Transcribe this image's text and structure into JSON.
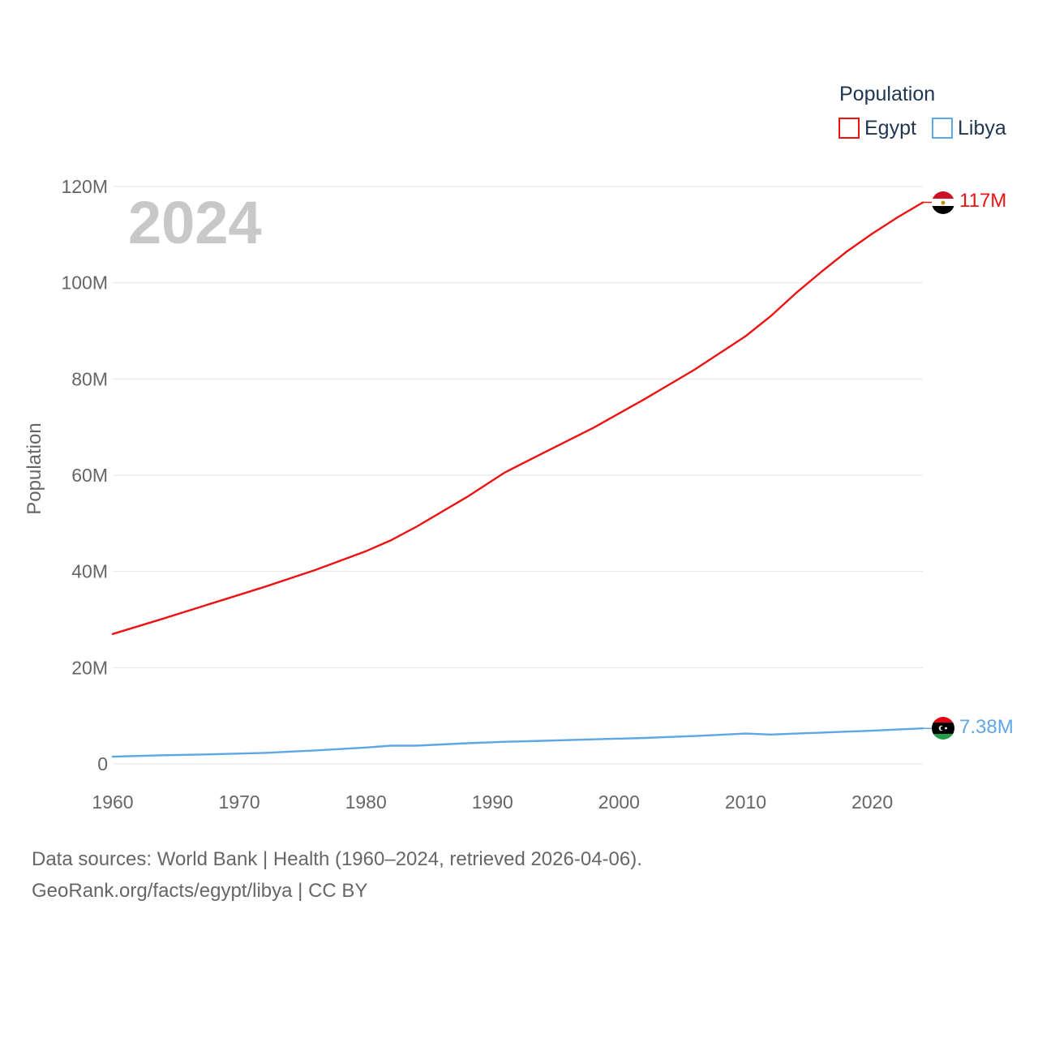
{
  "legend": {
    "title": "Population",
    "items": [
      {
        "label": "Egypt",
        "color": "#ee1111"
      },
      {
        "label": "Libya",
        "color": "#5ea7e5"
      }
    ]
  },
  "watermark_year": "2024",
  "end_labels": {
    "egypt": "117M",
    "libya": "7.38M"
  },
  "source": {
    "line1": "Data sources: World Bank | Health (1960–2024, retrieved 2026-04-06).",
    "line2": "GeoRank.org/facts/egypt/libya | CC BY"
  },
  "chart_data": {
    "type": "line",
    "title": "",
    "xlabel": "",
    "ylabel": "Population",
    "xlim": [
      1960,
      2024
    ],
    "ylim": [
      0,
      120000000
    ],
    "x_ticks": [
      1960,
      1970,
      1980,
      1990,
      2000,
      2010,
      2020
    ],
    "x_tick_labels": [
      "1960",
      "1970",
      "1980",
      "1990",
      "2000",
      "2010",
      "2020"
    ],
    "y_ticks": [
      0,
      20000000,
      40000000,
      60000000,
      80000000,
      100000000,
      120000000
    ],
    "y_tick_labels": [
      "0",
      "20M",
      "40M",
      "60M",
      "80M",
      "100M",
      "120M"
    ],
    "grid": true,
    "legend_position": "top-right",
    "x": [
      1960,
      1964,
      1968,
      1972,
      1976,
      1980,
      1982,
      1984,
      1988,
      1991,
      1994,
      1998,
      2002,
      2006,
      2010,
      2012,
      2014,
      2016,
      2018,
      2020,
      2022,
      2024
    ],
    "series": [
      {
        "name": "Egypt",
        "color": "#ee1111",
        "values": [
          27000000,
          30200000,
          33500000,
          36800000,
          40300000,
          44200000,
          46500000,
          49300000,
          55500000,
          60600000,
          64600000,
          69900000,
          75800000,
          82000000,
          88900000,
          93100000,
          97900000,
          102300000,
          106500000,
          110200000,
          113600000,
          116700000
        ]
      },
      {
        "name": "Libya",
        "color": "#5ea7e5",
        "values": [
          1500000,
          1800000,
          2000000,
          2300000,
          2800000,
          3400000,
          3800000,
          3800000,
          4300000,
          4600000,
          4800000,
          5100000,
          5400000,
          5800000,
          6300000,
          6100000,
          6300000,
          6500000,
          6700000,
          6900000,
          7150000,
          7380000
        ]
      }
    ]
  }
}
